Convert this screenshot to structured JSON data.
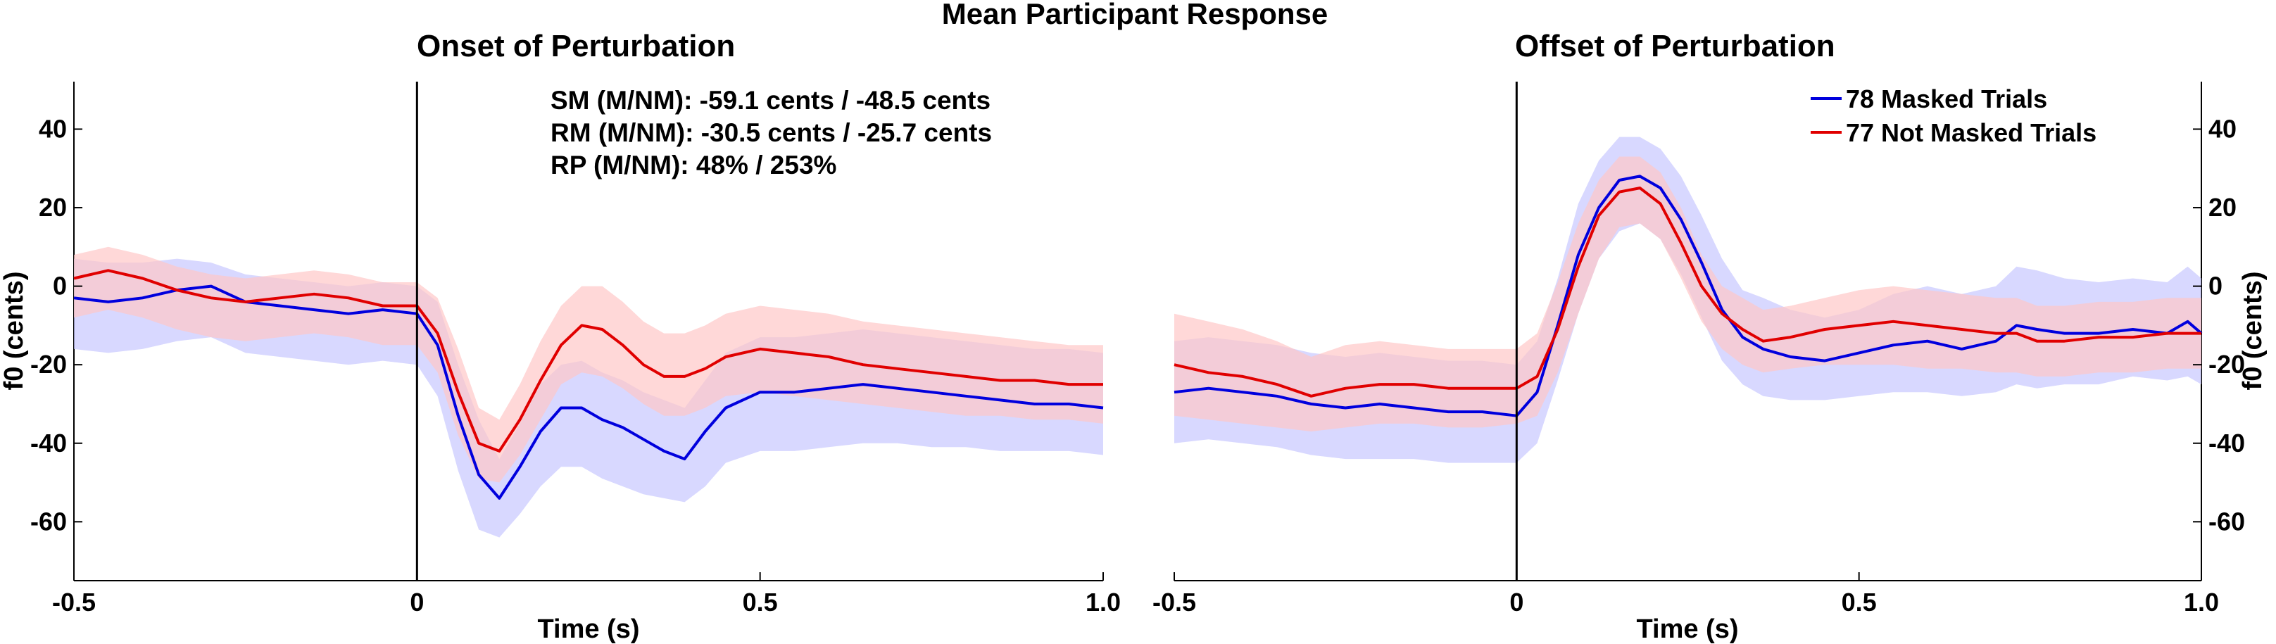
{
  "figure": {
    "title": "Mean Participant Response",
    "colors": {
      "masked": "#0000dd",
      "not_masked": "#e00000",
      "masked_band": "#c8c8ff",
      "not_masked_band": "#ffc8c8"
    }
  },
  "chart_data": [
    {
      "type": "line",
      "title": "Onset of Perturbation",
      "xlabel": "Time (s)",
      "ylabel": "f0 (cents)",
      "xlim": [
        -0.5,
        1.0
      ],
      "ylim": [
        -75,
        46
      ],
      "xticks": [
        -0.5,
        0,
        0.5,
        1.0
      ],
      "xtick_labels": [
        "-0.5",
        "0",
        "0.5",
        "1.0"
      ],
      "yticks": [
        40,
        20,
        0,
        -20,
        -40,
        -60
      ],
      "ytick_labels": [
        "40",
        "20",
        "0",
        "-20",
        "-40",
        "-60"
      ],
      "yaxis_side": "left",
      "event_line_x": 0,
      "annotations": [
        "SM (M/NM): -59.1 cents / -48.5 cents",
        "RM (M/NM): -30.5 cents / -25.7 cents",
        "RP (M/NM): 48% / 253%"
      ],
      "x": [
        -0.5,
        -0.45,
        -0.4,
        -0.35,
        -0.3,
        -0.25,
        -0.2,
        -0.15,
        -0.1,
        -0.05,
        0,
        0.03,
        0.06,
        0.09,
        0.12,
        0.15,
        0.18,
        0.21,
        0.24,
        0.27,
        0.3,
        0.33,
        0.36,
        0.39,
        0.42,
        0.45,
        0.5,
        0.55,
        0.6,
        0.65,
        0.7,
        0.75,
        0.8,
        0.85,
        0.9,
        0.95,
        1.0
      ],
      "series": [
        {
          "name": "78 Masked Trials",
          "values": [
            -3,
            -4,
            -3,
            -1,
            0,
            -4,
            -5,
            -6,
            -7,
            -6,
            -7,
            -15,
            -33,
            -48,
            -54,
            -46,
            -37,
            -31,
            -31,
            -34,
            -36,
            -39,
            -42,
            -44,
            -37,
            -31,
            -27,
            -27,
            -26,
            -25,
            -26,
            -27,
            -28,
            -29,
            -30,
            -30,
            -31
          ],
          "lower": [
            -16,
            -17,
            -16,
            -14,
            -13,
            -17,
            -18,
            -19,
            -20,
            -19,
            -20,
            -28,
            -47,
            -62,
            -64,
            -58,
            -51,
            -46,
            -46,
            -49,
            -51,
            -53,
            -54,
            -55,
            -51,
            -45,
            -42,
            -42,
            -41,
            -40,
            -40,
            -41,
            -41,
            -42,
            -42,
            -42,
            -43
          ],
          "upper": [
            7,
            6,
            6,
            7,
            6,
            3,
            2,
            1,
            0,
            1,
            0,
            -4,
            -20,
            -34,
            -44,
            -35,
            -25,
            -20,
            -19,
            -22,
            -24,
            -27,
            -29,
            -31,
            -24,
            -17,
            -13,
            -13,
            -12,
            -11,
            -12,
            -13,
            -14,
            -15,
            -16,
            -16,
            -17
          ]
        },
        {
          "name": "77 Not Masked Trials",
          "values": [
            2,
            4,
            2,
            -1,
            -3,
            -4,
            -3,
            -2,
            -3,
            -5,
            -5,
            -12,
            -27,
            -40,
            -42,
            -34,
            -24,
            -15,
            -10,
            -11,
            -15,
            -20,
            -23,
            -23,
            -21,
            -18,
            -16,
            -17,
            -18,
            -20,
            -21,
            -22,
            -23,
            -24,
            -24,
            -25,
            -25
          ],
          "lower": [
            -8,
            -6,
            -8,
            -11,
            -13,
            -14,
            -13,
            -12,
            -13,
            -15,
            -15,
            -22,
            -38,
            -49,
            -50,
            -43,
            -34,
            -25,
            -22,
            -23,
            -26,
            -30,
            -33,
            -33,
            -31,
            -28,
            -27,
            -28,
            -29,
            -30,
            -31,
            -32,
            -33,
            -33,
            -34,
            -34,
            -35
          ],
          "upper": [
            8,
            10,
            8,
            5,
            3,
            2,
            3,
            4,
            3,
            1,
            1,
            -3,
            -16,
            -31,
            -34,
            -25,
            -14,
            -5,
            0,
            0,
            -4,
            -9,
            -12,
            -12,
            -10,
            -7,
            -5,
            -6,
            -7,
            -9,
            -10,
            -11,
            -12,
            -13,
            -14,
            -15,
            -15
          ]
        }
      ]
    },
    {
      "type": "line",
      "title": "Offset of Perturbation",
      "xlabel": "Time (s)",
      "ylabel": "f0 (cents)",
      "xlim": [
        -0.5,
        1.0
      ],
      "ylim": [
        -75,
        46
      ],
      "xticks": [
        -0.5,
        0,
        0.5,
        1.0
      ],
      "xtick_labels": [
        "-0.5",
        "0",
        "0.5",
        "1.0"
      ],
      "yticks": [
        40,
        20,
        0,
        -20,
        -40,
        -60
      ],
      "ytick_labels": [
        "40",
        "20",
        "0",
        "-20",
        "-40",
        "-60"
      ],
      "yaxis_side": "right",
      "event_line_x": 0,
      "legend_position": "top-right",
      "x": [
        -0.5,
        -0.45,
        -0.4,
        -0.35,
        -0.3,
        -0.25,
        -0.2,
        -0.15,
        -0.1,
        -0.05,
        0,
        0.03,
        0.06,
        0.09,
        0.12,
        0.15,
        0.18,
        0.21,
        0.24,
        0.27,
        0.3,
        0.33,
        0.36,
        0.4,
        0.45,
        0.5,
        0.55,
        0.6,
        0.65,
        0.7,
        0.73,
        0.76,
        0.8,
        0.85,
        0.9,
        0.95,
        0.98,
        1.0
      ],
      "series": [
        {
          "name": "78 Masked Trials",
          "values": [
            -27,
            -26,
            -27,
            -28,
            -30,
            -31,
            -30,
            -31,
            -32,
            -32,
            -33,
            -27,
            -10,
            8,
            20,
            27,
            28,
            25,
            17,
            6,
            -6,
            -13,
            -16,
            -18,
            -19,
            -17,
            -15,
            -14,
            -16,
            -14,
            -10,
            -11,
            -12,
            -12,
            -11,
            -12,
            -9,
            -12
          ],
          "lower": [
            -40,
            -39,
            -40,
            -41,
            -43,
            -44,
            -44,
            -44,
            -45,
            -45,
            -45,
            -40,
            -24,
            -7,
            7,
            14,
            16,
            12,
            3,
            -8,
            -19,
            -25,
            -28,
            -29,
            -29,
            -28,
            -27,
            -27,
            -28,
            -27,
            -25,
            -26,
            -25,
            -25,
            -23,
            -24,
            -23,
            -25
          ],
          "upper": [
            -14,
            -13,
            -14,
            -15,
            -17,
            -18,
            -17,
            -18,
            -19,
            -19,
            -20,
            -14,
            2,
            21,
            32,
            38,
            38,
            35,
            28,
            18,
            7,
            -1,
            -3,
            -6,
            -8,
            -6,
            -2,
            0,
            -2,
            0,
            5,
            4,
            2,
            1,
            2,
            1,
            5,
            2
          ]
        },
        {
          "name": "77 Not Masked Trials",
          "values": [
            -20,
            -22,
            -23,
            -25,
            -28,
            -26,
            -25,
            -25,
            -26,
            -26,
            -26,
            -23,
            -11,
            5,
            18,
            24,
            25,
            21,
            11,
            0,
            -7,
            -11,
            -14,
            -13,
            -11,
            -10,
            -9,
            -10,
            -11,
            -12,
            -12,
            -14,
            -14,
            -13,
            -13,
            -12,
            -12,
            -12
          ],
          "lower": [
            -33,
            -34,
            -35,
            -36,
            -37,
            -36,
            -35,
            -35,
            -36,
            -36,
            -35,
            -33,
            -22,
            -7,
            7,
            15,
            16,
            12,
            2,
            -9,
            -16,
            -20,
            -22,
            -21,
            -20,
            -20,
            -20,
            -21,
            -21,
            -22,
            -22,
            -23,
            -23,
            -22,
            -22,
            -21,
            -21,
            -21
          ],
          "upper": [
            -7,
            -9,
            -11,
            -14,
            -18,
            -15,
            -14,
            -15,
            -16,
            -16,
            -16,
            -12,
            1,
            16,
            27,
            33,
            33,
            29,
            20,
            8,
            0,
            -3,
            -6,
            -5,
            -3,
            -1,
            0,
            -1,
            -2,
            -3,
            -3,
            -5,
            -5,
            -4,
            -4,
            -3,
            -3,
            -3
          ]
        }
      ]
    }
  ]
}
